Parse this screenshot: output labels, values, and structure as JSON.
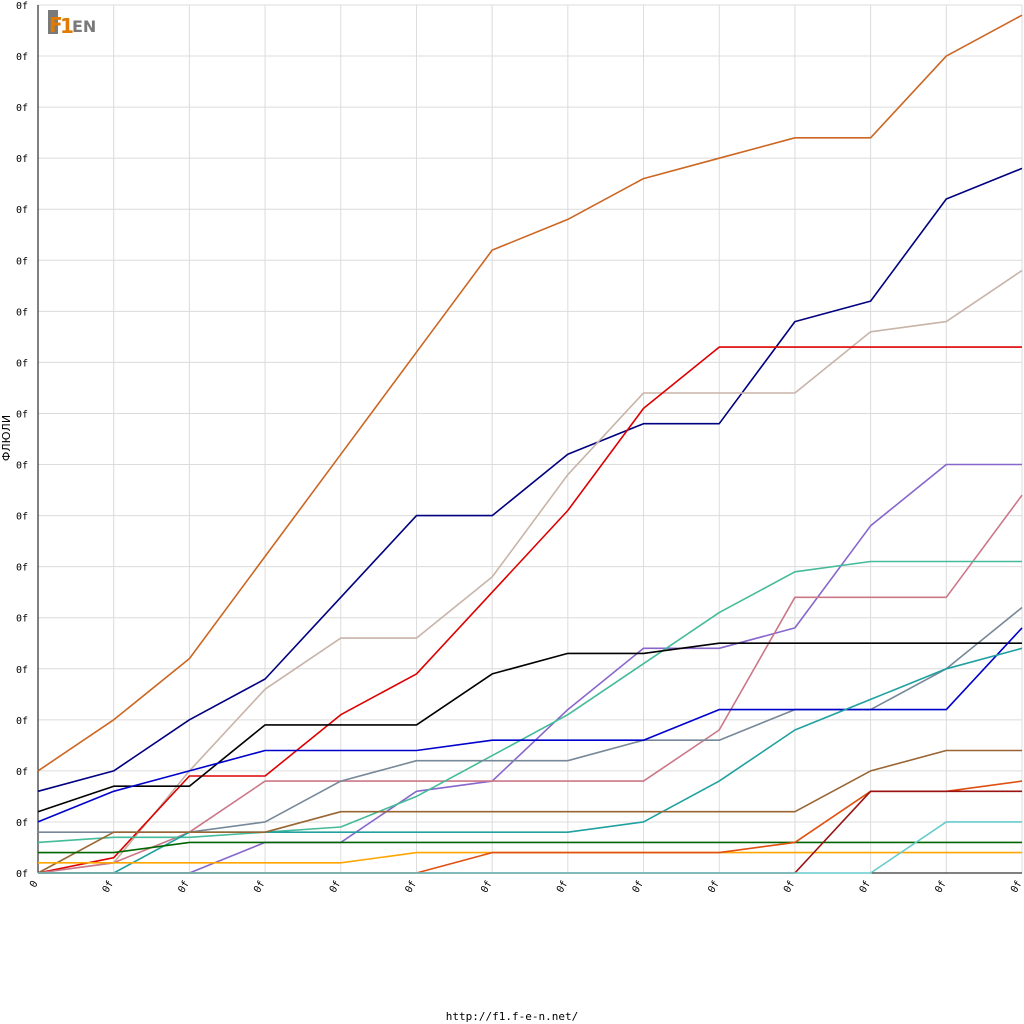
{
  "logo": {
    "first": "F",
    "middle": "1",
    "rest": "EN"
  },
  "footer": {
    "url": "http://f1.f-e-n.net/"
  },
  "chart_data": {
    "type": "line",
    "ylabel": "ФЛЮЛИ",
    "xlabel": "",
    "grid": true,
    "x": [
      0,
      1,
      2,
      3,
      4,
      5,
      6,
      7,
      8,
      9,
      10,
      11,
      12,
      13
    ],
    "x_tick_labels": [
      "0",
      "0f",
      "0f",
      "0f",
      "0f",
      "0f",
      "0f",
      "0f",
      "0f",
      "0f",
      "0f",
      "0f",
      "0f",
      "0f"
    ],
    "ylim": [
      0,
      170
    ],
    "y_ticks": [
      0,
      10,
      20,
      30,
      40,
      50,
      60,
      70,
      80,
      90,
      100,
      110,
      120,
      130,
      140,
      150,
      160,
      170
    ],
    "y_tick_labels": [
      "0f",
      "0f",
      "0f",
      "0f",
      "0f",
      "0f",
      "0f",
      "0f",
      "0f",
      "0f",
      "0f",
      "0f",
      "0f",
      "0f",
      "0f",
      "0f",
      "0f",
      "0f"
    ],
    "series": [
      {
        "color": "#cc6622",
        "values": [
          20,
          30,
          42,
          62,
          82,
          102,
          122,
          128,
          136,
          140,
          144,
          144,
          160,
          168
        ]
      },
      {
        "color": "#000080",
        "values": [
          16,
          20,
          30,
          38,
          54,
          70,
          70,
          82,
          88,
          88,
          108,
          112,
          132,
          138
        ]
      },
      {
        "color": "#c8b4a8",
        "values": [
          0,
          2,
          20,
          36,
          46,
          46,
          58,
          78,
          94,
          94,
          94,
          106,
          108,
          118
        ]
      },
      {
        "color": "#dd0000",
        "values": [
          0,
          3,
          19,
          19,
          31,
          39,
          55,
          71,
          91,
          103,
          103,
          103,
          103,
          103
        ]
      },
      {
        "color": "#8866cc",
        "values": [
          0,
          0,
          0,
          6,
          6,
          16,
          18,
          32,
          44,
          44,
          48,
          68,
          80,
          80
        ]
      },
      {
        "color": "#cc7788",
        "values": [
          0,
          2,
          8,
          18,
          18,
          18,
          18,
          18,
          18,
          28,
          54,
          54,
          54,
          74
        ]
      },
      {
        "color": "#44bb99",
        "values": [
          6,
          7,
          7,
          8,
          9,
          15,
          23,
          31,
          41,
          51,
          59,
          61,
          61,
          61
        ]
      },
      {
        "color": "#778899",
        "values": [
          8,
          8,
          8,
          10,
          18,
          22,
          22,
          22,
          26,
          26,
          32,
          32,
          40,
          52
        ]
      },
      {
        "color": "#000000",
        "values": [
          12,
          17,
          17,
          29,
          29,
          29,
          39,
          43,
          43,
          45,
          45,
          45,
          45,
          45
        ]
      },
      {
        "color": "#0000cc",
        "values": [
          10,
          16,
          20,
          24,
          24,
          24,
          26,
          26,
          26,
          32,
          32,
          32,
          32,
          48
        ]
      },
      {
        "color": "#20a0a0",
        "values": [
          0,
          0,
          8,
          8,
          8,
          8,
          8,
          8,
          10,
          18,
          28,
          34,
          40,
          44
        ]
      },
      {
        "color": "#996633",
        "values": [
          0,
          8,
          8,
          8,
          12,
          12,
          12,
          12,
          12,
          12,
          12,
          20,
          24,
          24
        ]
      },
      {
        "color": "#006600",
        "values": [
          4,
          4,
          6,
          6,
          6,
          6,
          6,
          6,
          6,
          6,
          6,
          6,
          6,
          6
        ]
      },
      {
        "color": "#ffa500",
        "values": [
          2,
          2,
          2,
          2,
          2,
          4,
          4,
          4,
          4,
          4,
          4,
          4,
          4,
          4
        ]
      },
      {
        "color": "#e05010",
        "values": [
          0,
          0,
          0,
          0,
          0,
          0,
          4,
          4,
          4,
          4,
          6,
          16,
          16,
          18
        ]
      },
      {
        "color": "#991111",
        "values": [
          0,
          0,
          0,
          0,
          0,
          0,
          0,
          0,
          0,
          0,
          0,
          16,
          16,
          16
        ]
      },
      {
        "color": "#66cccc",
        "values": [
          0,
          0,
          0,
          0,
          0,
          0,
          0,
          0,
          0,
          0,
          0,
          0,
          10,
          10
        ]
      }
    ]
  }
}
